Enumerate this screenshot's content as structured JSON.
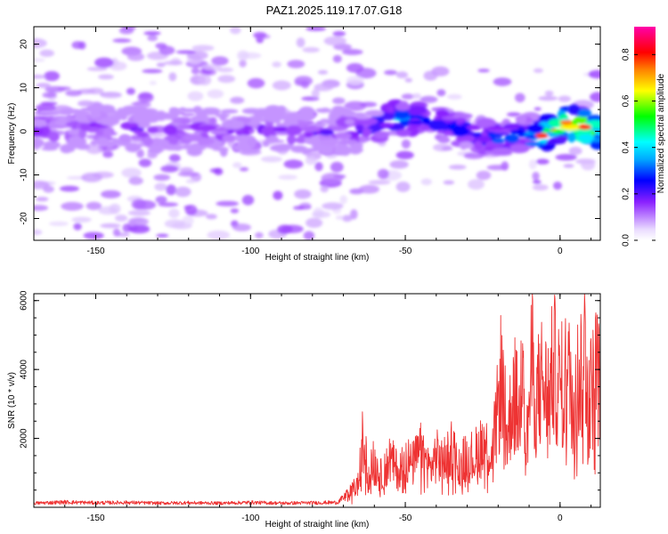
{
  "figure": {
    "title": "PAZ1.2025.119.17.07.G18"
  },
  "chart_data": [
    {
      "type": "heatmap",
      "title": "PAZ1.2025.119.17.07.G18",
      "xlabel": "Height of straight line (km)",
      "ylabel": "Frequency (Hz)",
      "xlim": [
        -170,
        13
      ],
      "ylim": [
        -25,
        24
      ],
      "xticks": [
        -150,
        -100,
        -50,
        0
      ],
      "yticks": [
        -20,
        -10,
        0,
        10,
        20
      ],
      "colorbar": {
        "label": "Normalized spectral amplitude",
        "range": [
          0,
          0.92
        ],
        "ticks": [
          "0.0",
          "0.2",
          "0.4",
          "0.6",
          "0.8"
        ],
        "colormap": "hsv-white-purple-blue-cyan-green-yellow-red-magenta"
      },
      "ridge": [
        {
          "x": -170,
          "freq": 0,
          "amp": 0.18
        },
        {
          "x": -150,
          "freq": 1,
          "amp": 0.2
        },
        {
          "x": -130,
          "freq": 0,
          "amp": 0.2
        },
        {
          "x": -110,
          "freq": 0,
          "amp": 0.2
        },
        {
          "x": -90,
          "freq": 0,
          "amp": 0.2
        },
        {
          "x": -70,
          "freq": 0,
          "amp": 0.22
        },
        {
          "x": -60,
          "freq": 1,
          "amp": 0.3
        },
        {
          "x": -55,
          "freq": 3,
          "amp": 0.45
        },
        {
          "x": -45,
          "freq": 3,
          "amp": 0.3
        },
        {
          "x": -30,
          "freq": 0,
          "amp": 0.3
        },
        {
          "x": -20,
          "freq": -2,
          "amp": 0.35
        },
        {
          "x": -10,
          "freq": 0,
          "amp": 0.35
        },
        {
          "x": -6,
          "freq": -1,
          "amp": 0.85
        },
        {
          "x": 2,
          "freq": 2,
          "amp": 0.8
        },
        {
          "x": 8,
          "freq": 1,
          "amp": 0.85
        },
        {
          "x": 12,
          "freq": 0,
          "amp": 0.6
        }
      ]
    },
    {
      "type": "line",
      "xlabel": "Height of straight line (km)",
      "ylabel": "SNR (10 * v/v)",
      "xlim": [
        -170,
        13
      ],
      "ylim": [
        0,
        6200
      ],
      "xticks": [
        -150,
        -100,
        -50,
        0
      ],
      "yticks": [
        2000,
        4000,
        6000
      ],
      "series": [
        {
          "color": "#ee3333",
          "x": [
            -170,
            -160,
            -150,
            -140,
            -130,
            -120,
            -110,
            -100,
            -90,
            -80,
            -72,
            -68,
            -65,
            -64,
            -62,
            -60,
            -58,
            -55,
            -52,
            -50,
            -48,
            -45,
            -42,
            -40,
            -38,
            -35,
            -32,
            -30,
            -28,
            -25,
            -22,
            -20,
            -19,
            -17,
            -15,
            -13,
            -12,
            -11,
            -10,
            -9,
            -8,
            -6,
            -4,
            -2,
            0,
            2,
            4,
            6,
            8,
            10,
            12,
            13
          ],
          "values": [
            120,
            150,
            130,
            140,
            120,
            130,
            120,
            140,
            120,
            130,
            140,
            400,
            700,
            1900,
            1100,
            1300,
            900,
            1400,
            1000,
            1500,
            1200,
            1600,
            1100,
            1500,
            1300,
            1700,
            1200,
            1600,
            1400,
            1900,
            1500,
            2900,
            3900,
            2000,
            3500,
            2500,
            6200,
            1600,
            2900,
            4300,
            3000,
            3700,
            3200,
            4100,
            3400,
            3800,
            3500,
            3700,
            4600,
            3300,
            4100,
            3100
          ]
        }
      ]
    }
  ]
}
